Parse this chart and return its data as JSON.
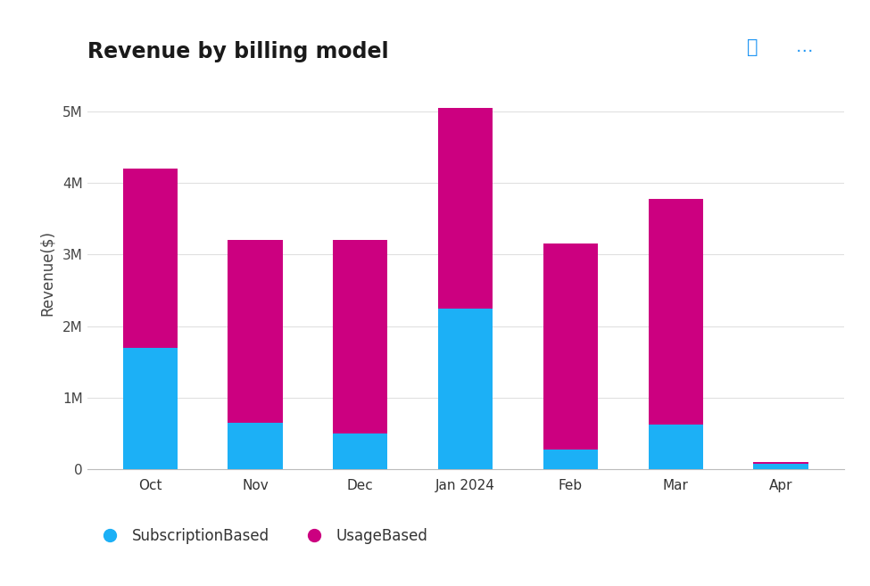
{
  "title": "Revenue by billing model",
  "ylabel": "Revenue($)",
  "categories": [
    "Oct",
    "Nov",
    "Dec",
    "Jan 2024",
    "Feb",
    "Mar",
    "Apr"
  ],
  "subscription_based": [
    1700000,
    650000,
    500000,
    2250000,
    270000,
    620000,
    75000
  ],
  "usage_based": [
    2500000,
    2550000,
    2700000,
    2800000,
    2880000,
    3160000,
    20000
  ],
  "color_subscription": "#1CB0F6",
  "color_usage": "#CC0080",
  "background_color": "#FFFFFF",
  "ylim": [
    0,
    5500000
  ],
  "yticks": [
    0,
    1000000,
    2000000,
    3000000,
    4000000,
    5000000
  ],
  "ytick_labels": [
    "0",
    "1M",
    "2M",
    "3M",
    "4M",
    "5M"
  ],
  "legend_subscription": "SubscriptionBased",
  "legend_usage": "UsageBased",
  "title_fontsize": 17,
  "axis_fontsize": 12,
  "tick_fontsize": 11,
  "legend_fontsize": 12,
  "bar_width": 0.52,
  "grid_color": "#E0E0E0"
}
